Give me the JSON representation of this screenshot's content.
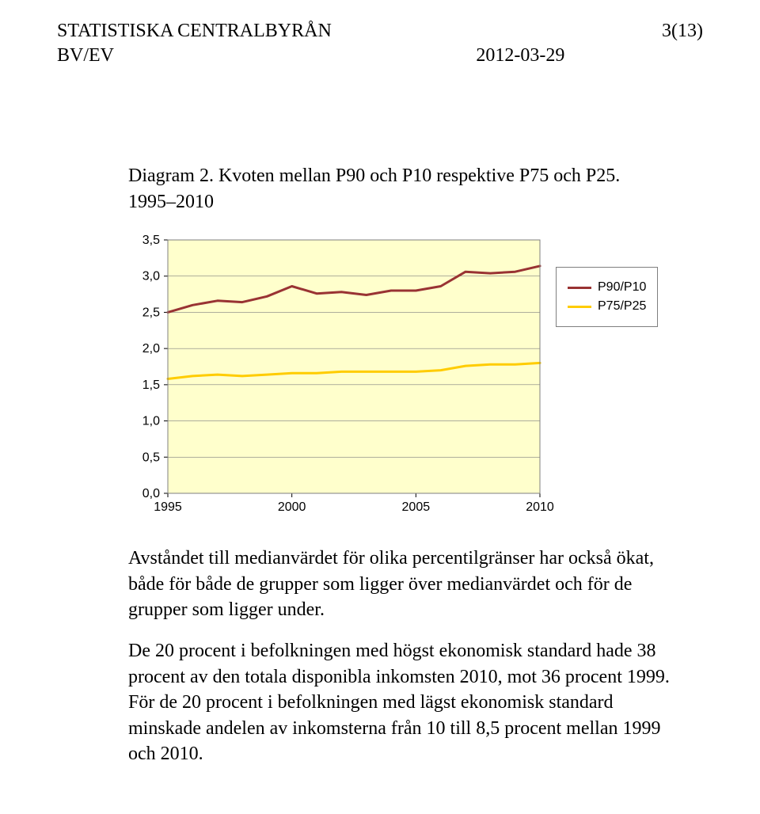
{
  "header": {
    "org": "STATISTISKA CENTRALBYRÅN",
    "unit": "BV/EV",
    "date": "2012-03-29",
    "pagenum": "3(13)"
  },
  "caption": "Diagram 2. Kvoten mellan P90 och P10 respektive P75 och P25. 1995–2010",
  "chart": {
    "type": "line",
    "background_color": "#ffffcc",
    "plot_border_color": "#7f7f7f",
    "grid_color": "#7f7f7f",
    "axis_fontsize": 16,
    "ylim": [
      0.0,
      3.5
    ],
    "ytick_step": 0.5,
    "yticks": [
      "0,0",
      "0,5",
      "1,0",
      "1,5",
      "2,0",
      "2,5",
      "3,0",
      "3,5"
    ],
    "xlim": [
      1995,
      2010
    ],
    "xticks": [
      1995,
      2000,
      2005,
      2010
    ],
    "line_width": 3,
    "legend_border_color": "#7f7f7f",
    "legend_fontsize": 16,
    "series": [
      {
        "name": "P90/P10",
        "color": "#993333",
        "x": [
          1995,
          1996,
          1997,
          1998,
          1999,
          2000,
          2001,
          2002,
          2003,
          2004,
          2005,
          2006,
          2007,
          2008,
          2009,
          2010
        ],
        "y": [
          2.5,
          2.6,
          2.66,
          2.64,
          2.72,
          2.86,
          2.76,
          2.78,
          2.74,
          2.8,
          2.8,
          2.86,
          3.06,
          3.04,
          3.06,
          3.14
        ]
      },
      {
        "name": "P75/P25",
        "color": "#ffcc00",
        "x": [
          1995,
          1996,
          1997,
          1998,
          1999,
          2000,
          2001,
          2002,
          2003,
          2004,
          2005,
          2006,
          2007,
          2008,
          2009,
          2010
        ],
        "y": [
          1.58,
          1.62,
          1.64,
          1.62,
          1.64,
          1.66,
          1.66,
          1.68,
          1.68,
          1.68,
          1.68,
          1.7,
          1.76,
          1.78,
          1.78,
          1.8
        ]
      }
    ]
  },
  "body": {
    "para1": "Avståndet till medianvärdet för olika percentilgränser har också ökat, både för både de grupper som ligger över medianvärdet och för de grupper som ligger under.",
    "para2": "De 20 procent i befolkningen med högst ekonomisk standard hade 38 procent av den totala disponibla inkomsten 2010, mot 36 procent 1999. För de 20 procent i befolkningen med lägst ekonomisk standard minskade andelen av inkomsterna från 10 till 8,5 procent mellan 1999 och 2010."
  }
}
